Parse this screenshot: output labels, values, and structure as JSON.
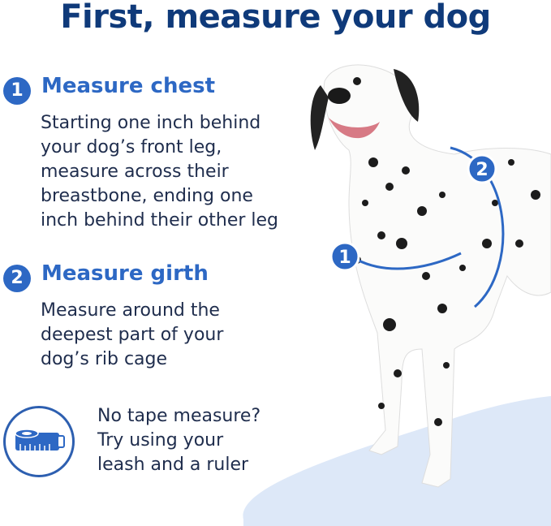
{
  "title": "First, measure your dog",
  "steps": [
    {
      "number": "1",
      "heading": "Measure chest",
      "lines": [
        "Starting one inch behind",
        "your dog’s front leg,",
        "measure across their",
        "breastbone, ending one",
        "inch behind their other leg"
      ]
    },
    {
      "number": "2",
      "heading": "Measure girth",
      "lines": [
        "Measure around the",
        "deepest part of your",
        "dog’s rib cage"
      ]
    }
  ],
  "tip": {
    "icon": "tape-measure-icon",
    "lines": [
      "No tape measure?",
      "Try using your",
      "leash and a ruler"
    ]
  },
  "markers": [
    "1",
    "2"
  ],
  "colors": {
    "title": "#0f3a7a",
    "accent": "#2d68c4",
    "text": "#1f2d4d",
    "floor": "#dde8f8"
  }
}
